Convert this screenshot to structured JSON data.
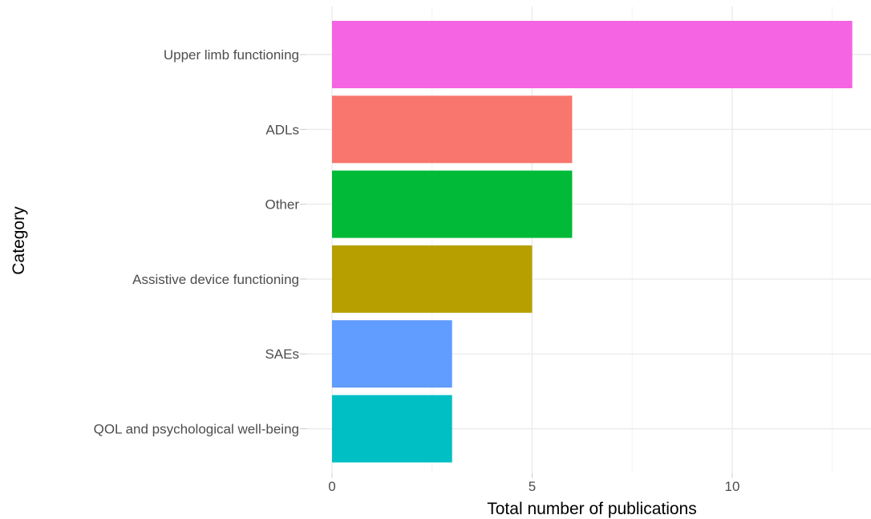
{
  "chart_data": {
    "type": "bar",
    "orientation": "horizontal",
    "categories": [
      "Upper limb functioning",
      "ADLs",
      "Other",
      "Assistive device functioning",
      "SAEs",
      "QOL and psychological well-being"
    ],
    "values": [
      13,
      6,
      6,
      5,
      3,
      3
    ],
    "colors": [
      "#f564e3",
      "#f8766d",
      "#00ba38",
      "#b79f00",
      "#619cff",
      "#00bfc4"
    ],
    "xlabel": "Total number of publications",
    "ylabel": "Category",
    "x_ticks": [
      0,
      5,
      10
    ],
    "x_tick_labels": [
      "0",
      "5",
      "10"
    ],
    "xlim": [
      -0.65,
      13.5
    ],
    "grid": true,
    "legend": "none"
  }
}
